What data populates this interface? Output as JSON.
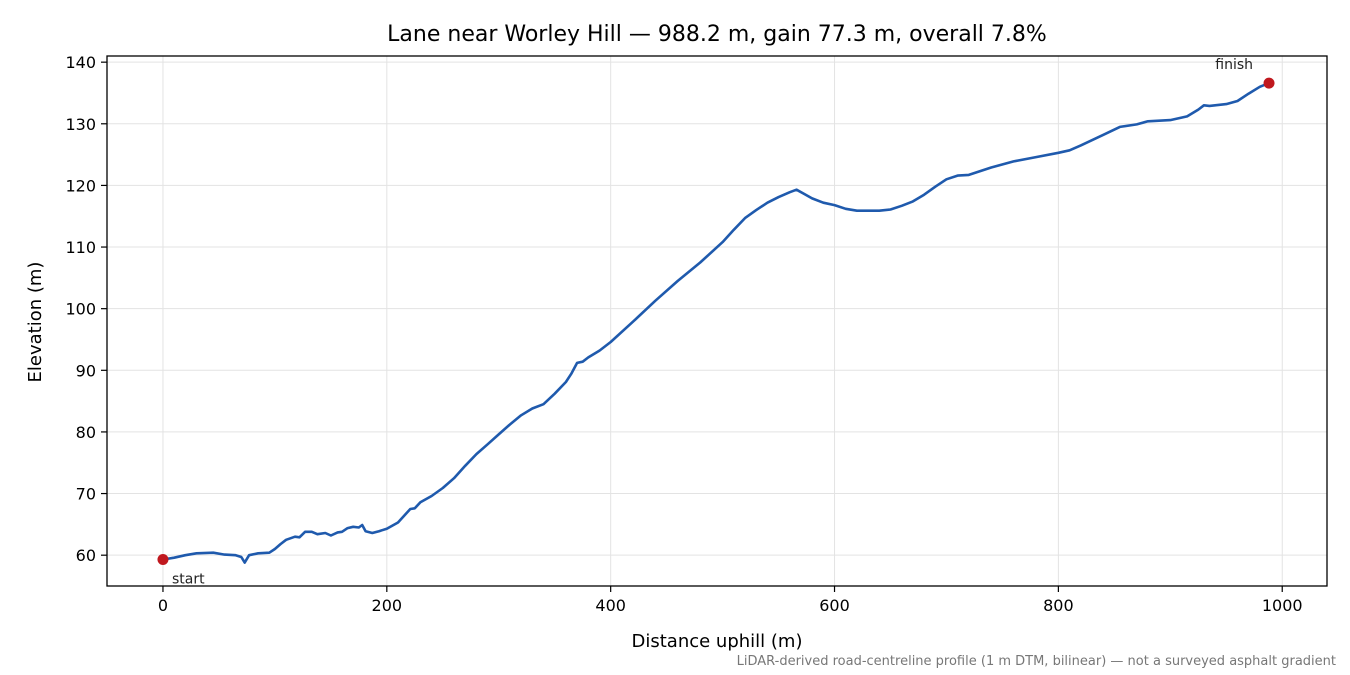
{
  "chart_data": {
    "type": "line",
    "title": "Lane near Worley Hill — 988.2 m, gain 77.3 m, overall 7.8%",
    "xlabel": "Distance uphill (m)",
    "ylabel": "Elevation (m)",
    "xlim": [
      -50,
      1040
    ],
    "ylim": [
      55,
      141
    ],
    "xticks": [
      0,
      200,
      400,
      600,
      800,
      1000
    ],
    "xtick_labels": [
      "0",
      "200",
      "400",
      "600",
      "800",
      "1000"
    ],
    "yticks": [
      60,
      70,
      80,
      90,
      100,
      110,
      120,
      130,
      140
    ],
    "ytick_labels": [
      "60",
      "70",
      "80",
      "90",
      "100",
      "110",
      "120",
      "130",
      "140"
    ],
    "grid": true,
    "series": [
      {
        "color": "#1f5aad",
        "points": [
          [
            0,
            59.3
          ],
          [
            10,
            59.6
          ],
          [
            20,
            60.0
          ],
          [
            30,
            60.3
          ],
          [
            45,
            60.4
          ],
          [
            55,
            60.1
          ],
          [
            65,
            60.0
          ],
          [
            70,
            59.7
          ],
          [
            73,
            58.8
          ],
          [
            77,
            60.0
          ],
          [
            85,
            60.3
          ],
          [
            95,
            60.4
          ],
          [
            100,
            61.0
          ],
          [
            105,
            61.8
          ],
          [
            110,
            62.5
          ],
          [
            118,
            63.0
          ],
          [
            122,
            62.9
          ],
          [
            127,
            63.8
          ],
          [
            133,
            63.8
          ],
          [
            138,
            63.4
          ],
          [
            145,
            63.6
          ],
          [
            150,
            63.2
          ],
          [
            156,
            63.7
          ],
          [
            160,
            63.8
          ],
          [
            165,
            64.4
          ],
          [
            170,
            64.6
          ],
          [
            175,
            64.5
          ],
          [
            178,
            64.9
          ],
          [
            181,
            63.9
          ],
          [
            187,
            63.6
          ],
          [
            193,
            63.9
          ],
          [
            200,
            64.3
          ],
          [
            210,
            65.3
          ],
          [
            216,
            66.5
          ],
          [
            221,
            67.5
          ],
          [
            225,
            67.6
          ],
          [
            230,
            68.6
          ],
          [
            240,
            69.6
          ],
          [
            250,
            70.9
          ],
          [
            260,
            72.5
          ],
          [
            270,
            74.5
          ],
          [
            280,
            76.4
          ],
          [
            290,
            78.0
          ],
          [
            300,
            79.6
          ],
          [
            310,
            81.2
          ],
          [
            320,
            82.7
          ],
          [
            330,
            83.8
          ],
          [
            340,
            84.5
          ],
          [
            350,
            86.2
          ],
          [
            360,
            88.1
          ],
          [
            365,
            89.5
          ],
          [
            370,
            91.2
          ],
          [
            375,
            91.4
          ],
          [
            380,
            92.1
          ],
          [
            390,
            93.2
          ],
          [
            400,
            94.6
          ],
          [
            420,
            97.9
          ],
          [
            440,
            101.3
          ],
          [
            460,
            104.5
          ],
          [
            480,
            107.5
          ],
          [
            500,
            110.8
          ],
          [
            510,
            112.8
          ],
          [
            520,
            114.7
          ],
          [
            530,
            116.0
          ],
          [
            540,
            117.2
          ],
          [
            550,
            118.1
          ],
          [
            560,
            118.9
          ],
          [
            566,
            119.3
          ],
          [
            572,
            118.7
          ],
          [
            580,
            117.9
          ],
          [
            590,
            117.2
          ],
          [
            600,
            116.8
          ],
          [
            610,
            116.2
          ],
          [
            620,
            115.9
          ],
          [
            640,
            115.9
          ],
          [
            650,
            116.1
          ],
          [
            660,
            116.7
          ],
          [
            670,
            117.4
          ],
          [
            680,
            118.5
          ],
          [
            690,
            119.8
          ],
          [
            700,
            121.0
          ],
          [
            710,
            121.6
          ],
          [
            720,
            121.7
          ],
          [
            740,
            122.9
          ],
          [
            760,
            123.9
          ],
          [
            780,
            124.6
          ],
          [
            800,
            125.3
          ],
          [
            810,
            125.7
          ],
          [
            820,
            126.5
          ],
          [
            840,
            128.2
          ],
          [
            855,
            129.5
          ],
          [
            870,
            129.9
          ],
          [
            880,
            130.4
          ],
          [
            900,
            130.6
          ],
          [
            915,
            131.2
          ],
          [
            925,
            132.3
          ],
          [
            930,
            133.0
          ],
          [
            935,
            132.9
          ],
          [
            950,
            133.2
          ],
          [
            960,
            133.7
          ],
          [
            970,
            134.9
          ],
          [
            980,
            136.0
          ],
          [
            988.2,
            136.6
          ]
        ]
      }
    ],
    "markers": [
      {
        "x": 0,
        "y": 59.3,
        "label": "start",
        "color": "#c0181e"
      },
      {
        "x": 988.2,
        "y": 136.6,
        "label": "finish",
        "color": "#c0181e"
      }
    ],
    "footnote": "LiDAR-derived road-centreline profile (1 m DTM, bilinear) — not a surveyed asphalt gradient"
  }
}
